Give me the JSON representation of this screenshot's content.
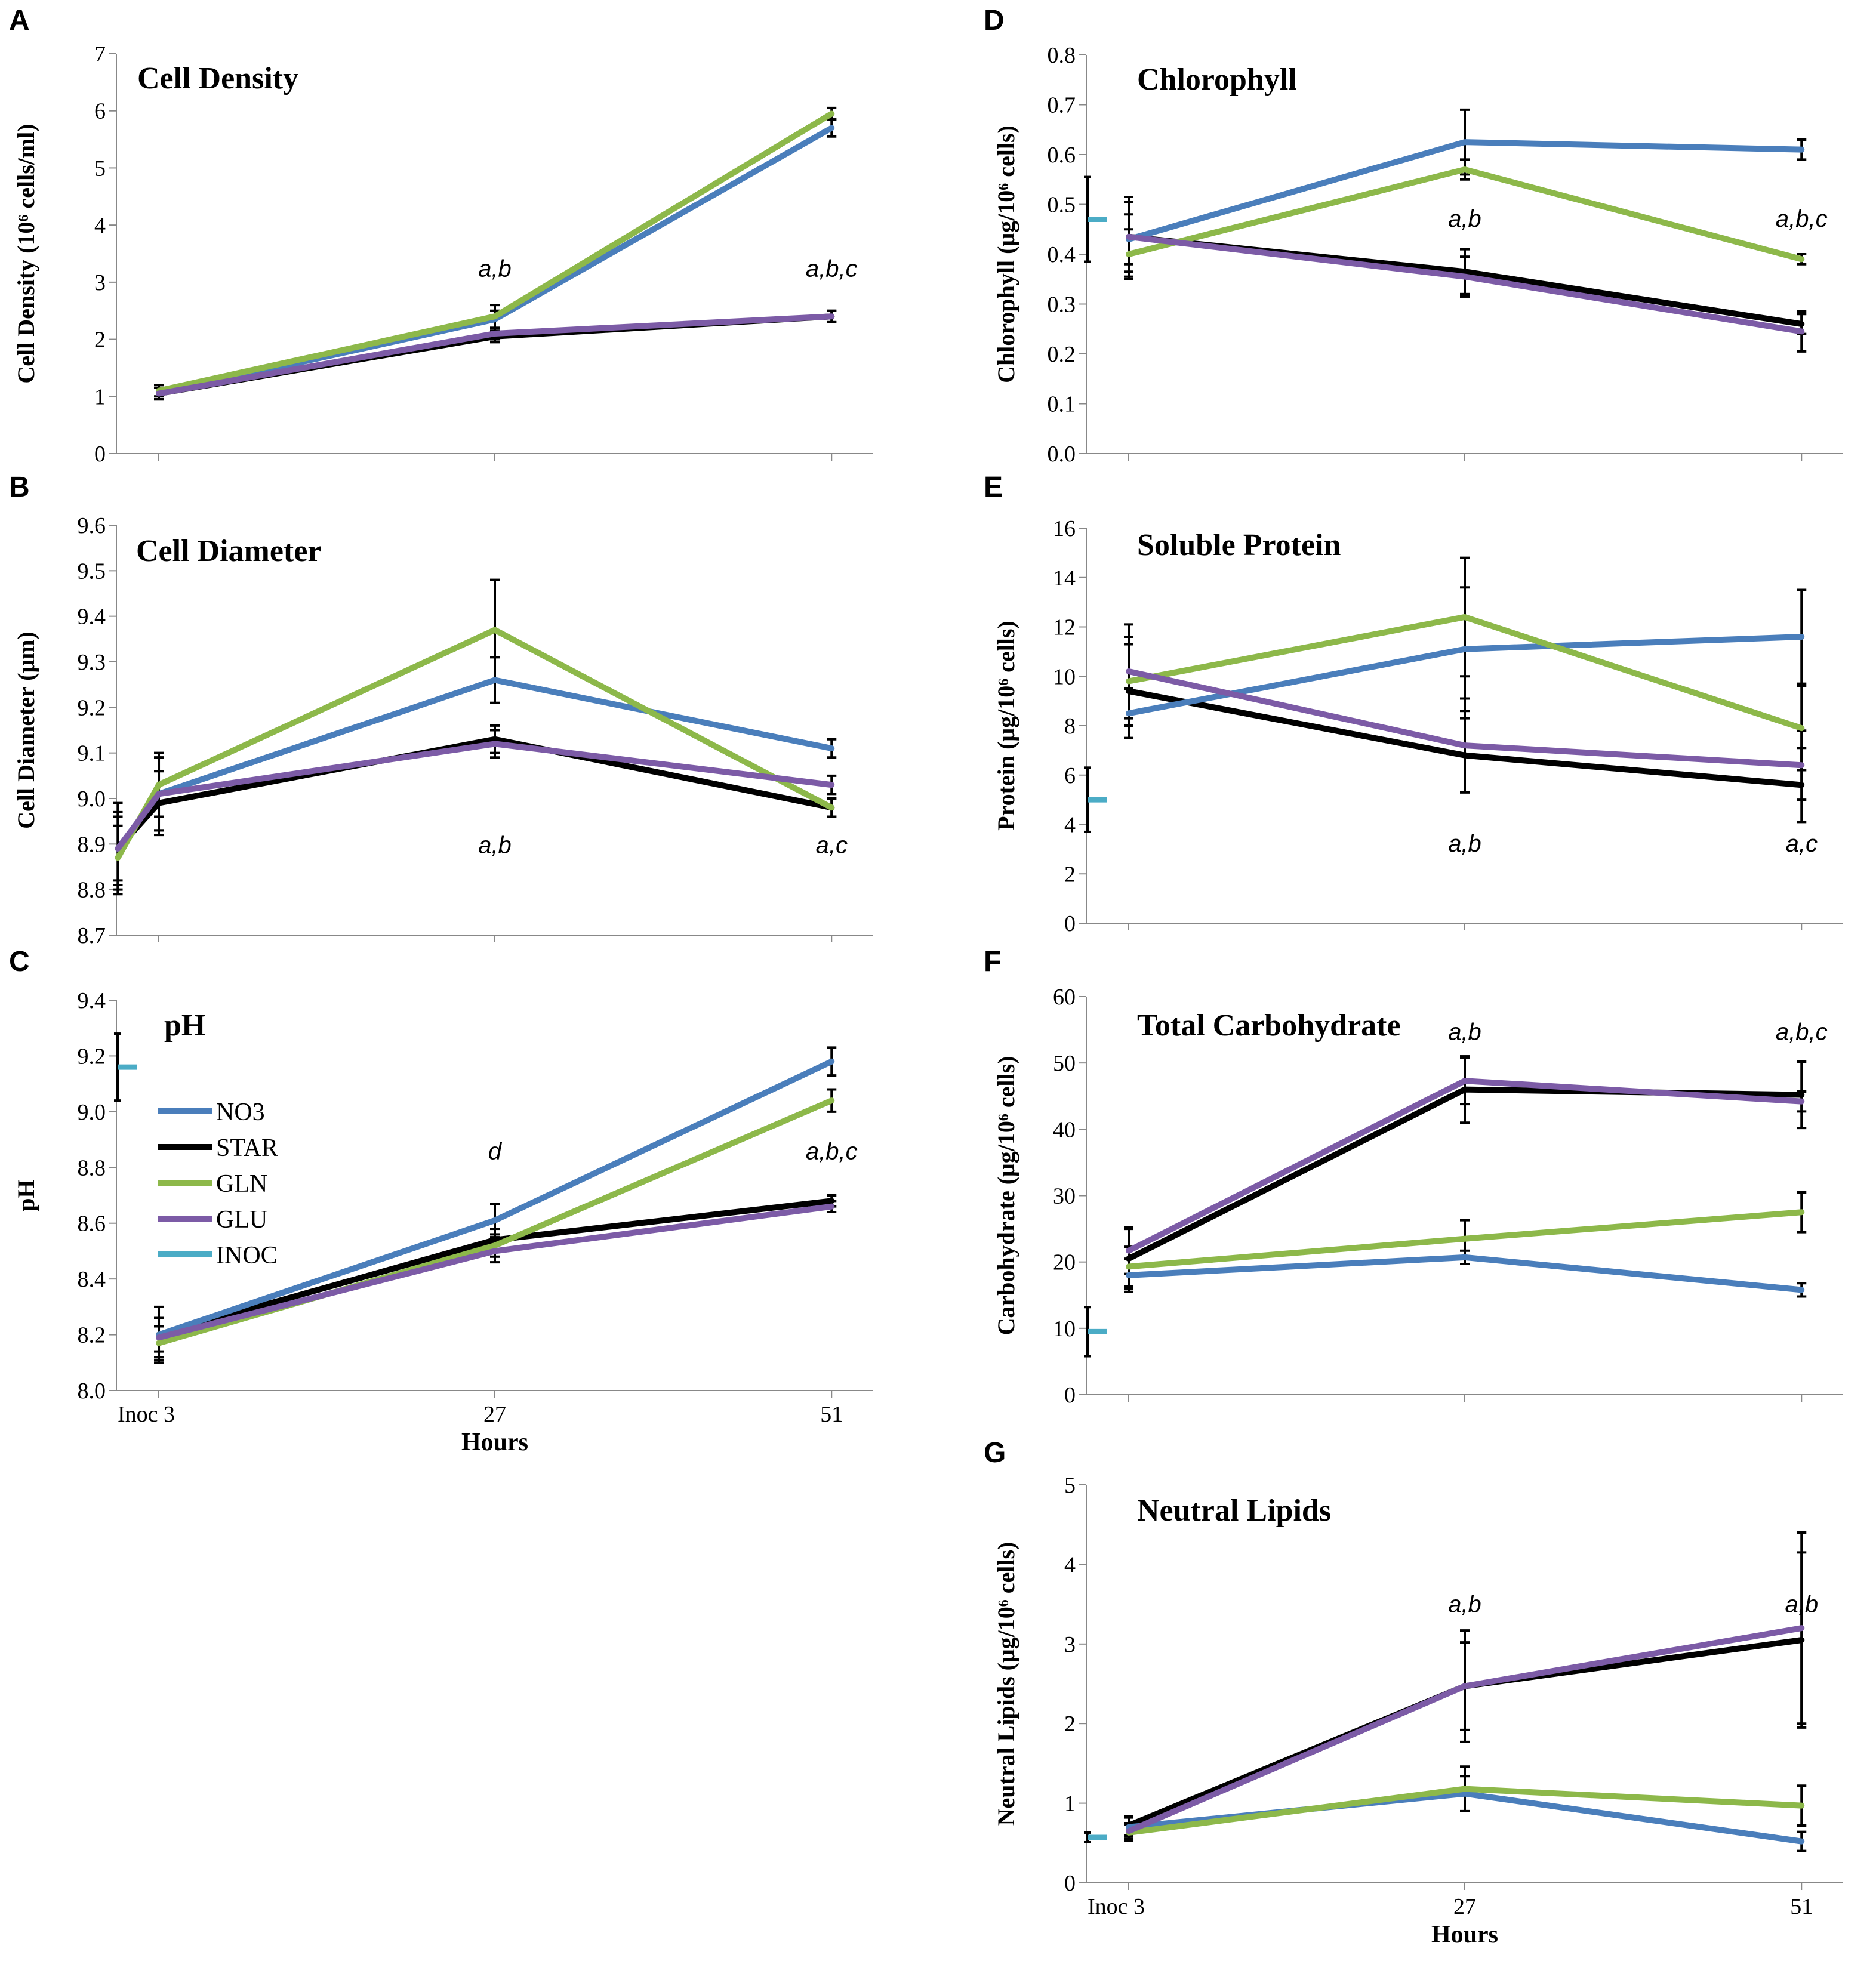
{
  "colors": {
    "NO3": "#4a7ebb",
    "STAR": "#000000",
    "GLN": "#8db84a",
    "GLU": "#7c5ba6",
    "INOC": "#4bacc6"
  },
  "x_axis": {
    "tick_labels": [
      "Inoc 3",
      "27",
      "51"
    ],
    "label": "Hours"
  },
  "legend": [
    "NO3",
    "STAR",
    "GLN",
    "GLU",
    "INOC"
  ],
  "chart_data": [
    {
      "panel": "A",
      "type": "line",
      "title": "Cell Density",
      "ylabel": "Cell Density (10⁶ cells/ml)",
      "ylim": [
        0,
        7
      ],
      "ytick_labels": [
        "0",
        "1",
        "2",
        "3",
        "4",
        "5",
        "6",
        "7"
      ],
      "x": [
        3,
        27,
        51
      ],
      "series": [
        {
          "name": "NO3",
          "values": [
            1.05,
            2.35,
            5.7
          ],
          "err": [
            0.1,
            0.15,
            0.15
          ]
        },
        {
          "name": "STAR",
          "values": [
            1.05,
            2.05,
            2.4
          ],
          "err": [
            0.1,
            0.1,
            0.1
          ]
        },
        {
          "name": "GLN",
          "values": [
            1.1,
            2.4,
            5.95
          ],
          "err": [
            0.1,
            0.2,
            0.1
          ]
        },
        {
          "name": "GLU",
          "values": [
            1.05,
            2.1,
            2.4
          ],
          "err": [
            0.1,
            0.1,
            0.1
          ]
        }
      ],
      "inoc": null,
      "annotations": [
        {
          "x": 27,
          "y": 3.1,
          "text": "a,b"
        },
        {
          "x": 51,
          "y": 3.1,
          "text": "a,b,c"
        }
      ]
    },
    {
      "panel": "B",
      "type": "line",
      "title": "Cell Diameter",
      "ylabel": "Cell Diameter (μm)",
      "ylim": [
        8.7,
        9.6
      ],
      "ytick_labels": [
        "8.7",
        "8.8",
        "8.9",
        "9.0",
        "9.1",
        "9.2",
        "9.3",
        "9.4",
        "9.5",
        "9.6"
      ],
      "x": [
        0,
        3,
        27,
        51
      ],
      "series": [
        {
          "name": "NO3",
          "values": [
            8.89,
            9.01,
            9.26,
            9.11
          ],
          "err": [
            0.08,
            0.08,
            0.05,
            0.02
          ]
        },
        {
          "name": "STAR",
          "values": [
            8.89,
            8.99,
            9.13,
            8.98
          ],
          "err": [
            0.1,
            0.07,
            0.03,
            0.02
          ]
        },
        {
          "name": "GLN",
          "values": [
            8.87,
            9.03,
            9.37,
            8.98
          ],
          "err": [
            0.07,
            0.07,
            0.11,
            0.02
          ]
        },
        {
          "name": "GLU",
          "values": [
            8.89,
            9.01,
            9.12,
            9.03
          ],
          "err": [
            0.07,
            0.08,
            0.03,
            0.02
          ]
        }
      ],
      "inoc": null,
      "annotations": [
        {
          "x": 27,
          "y": 8.88,
          "text": "a,b"
        },
        {
          "x": 51,
          "y": 8.88,
          "text": "a,c"
        }
      ]
    },
    {
      "panel": "C",
      "type": "line",
      "title": "pH",
      "ylabel": "pH",
      "ylim": [
        8.0,
        9.4
      ],
      "ytick_labels": [
        "8.0",
        "8.2",
        "8.4",
        "8.6",
        "8.8",
        "9.0",
        "9.2",
        "9.4"
      ],
      "x": [
        3,
        27,
        51
      ],
      "series": [
        {
          "name": "NO3",
          "values": [
            8.2,
            8.61,
            9.18
          ],
          "err": [
            0.1,
            0.06,
            0.05
          ]
        },
        {
          "name": "STAR",
          "values": [
            8.2,
            8.54,
            8.68
          ],
          "err": [
            0.06,
            0.04,
            0.02
          ]
        },
        {
          "name": "GLN",
          "values": [
            8.17,
            8.52,
            9.04
          ],
          "err": [
            0.06,
            0.04,
            0.04
          ]
        },
        {
          "name": "GLU",
          "values": [
            8.19,
            8.5,
            8.66
          ],
          "err": [
            0.07,
            0.04,
            0.02
          ]
        }
      ],
      "inoc": {
        "value": 9.16,
        "err": 0.12
      },
      "annotations": [
        {
          "x": 27,
          "y": 8.83,
          "text": "d"
        },
        {
          "x": 51,
          "y": 8.83,
          "text": "a,b,c"
        }
      ]
    },
    {
      "panel": "D",
      "type": "line",
      "title": "Chlorophyll",
      "ylabel": "Chlorophyll (μg/10⁶ cells)",
      "ylim": [
        0,
        0.8
      ],
      "ytick_labels": [
        "0.0",
        "0.1",
        "0.2",
        "0.3",
        "0.4",
        "0.5",
        "0.6",
        "0.7",
        "0.8"
      ],
      "x": [
        3,
        27,
        51
      ],
      "series": [
        {
          "name": "NO3",
          "values": [
            0.43,
            0.625,
            0.61
          ],
          "err": [
            0.05,
            0.065,
            0.02
          ]
        },
        {
          "name": "STAR",
          "values": [
            0.435,
            0.365,
            0.26
          ],
          "err": [
            0.08,
            0.045,
            0.02
          ]
        },
        {
          "name": "GLN",
          "values": [
            0.4,
            0.57,
            0.39
          ],
          "err": [
            0.05,
            0.02,
            0.01
          ]
        },
        {
          "name": "GLU",
          "values": [
            0.435,
            0.355,
            0.245
          ],
          "err": [
            0.07,
            0.04,
            0.04
          ]
        }
      ],
      "inoc": {
        "value": 0.47,
        "err": 0.085
      },
      "annotations": [
        {
          "x": 27,
          "y": 0.455,
          "text": "a,b"
        },
        {
          "x": 51,
          "y": 0.455,
          "text": "a,b,c"
        }
      ]
    },
    {
      "panel": "E",
      "type": "line",
      "title": "Soluble Protein",
      "ylabel": "Protein (μg/10⁶ cells)",
      "ylim": [
        0,
        16
      ],
      "ytick_labels": [
        "0",
        "2",
        "4",
        "6",
        "8",
        "10",
        "12",
        "14",
        "16"
      ],
      "x": [
        3,
        27,
        51
      ],
      "series": [
        {
          "name": "NO3",
          "values": [
            8.5,
            11.1,
            11.6
          ],
          "err": [
            1.0,
            2.5,
            1.9
          ]
        },
        {
          "name": "STAR",
          "values": [
            9.4,
            6.8,
            5.6
          ],
          "err": [
            1.9,
            1.5,
            1.5
          ]
        },
        {
          "name": "GLN",
          "values": [
            9.8,
            12.4,
            7.9
          ],
          "err": [
            1.8,
            2.4,
            1.7
          ]
        },
        {
          "name": "GLU",
          "values": [
            10.2,
            7.2,
            6.4
          ],
          "err": [
            1.9,
            1.9,
            1.4
          ]
        }
      ],
      "inoc": {
        "value": 5.0,
        "err": 1.3
      },
      "annotations": [
        {
          "x": 27,
          "y": 2.9,
          "text": "a,b"
        },
        {
          "x": 51,
          "y": 2.9,
          "text": "a,c"
        }
      ]
    },
    {
      "panel": "F",
      "type": "line",
      "title": "Total Carbohydrate",
      "ylabel": "Carbohydrate (μg/10⁶ cells)",
      "ylim": [
        0,
        60
      ],
      "ytick_labels": [
        "0",
        "10",
        "20",
        "30",
        "40",
        "50",
        "60"
      ],
      "x": [
        3,
        27,
        51
      ],
      "series": [
        {
          "name": "NO3",
          "values": [
            18.0,
            20.7,
            15.8
          ],
          "err": [
            2.5,
            1.0,
            1.0
          ]
        },
        {
          "name": "STAR",
          "values": [
            20.5,
            46.0,
            45.2
          ],
          "err": [
            4.5,
            5.0,
            5.0
          ]
        },
        {
          "name": "GLN",
          "values": [
            19.3,
            23.5,
            27.5
          ],
          "err": [
            3.0,
            2.8,
            3.0
          ]
        },
        {
          "name": "GLU",
          "values": [
            21.7,
            47.3,
            44.2
          ],
          "err": [
            3.5,
            3.5,
            1.5
          ]
        }
      ],
      "inoc": {
        "value": 9.5,
        "err": 3.7
      },
      "annotations": [
        {
          "x": 27,
          "y": 53.5,
          "text": "a,b"
        },
        {
          "x": 51,
          "y": 53.5,
          "text": "a,b,c"
        }
      ]
    },
    {
      "panel": "G",
      "type": "line",
      "title": "Neutral Lipids",
      "ylabel": "Neutral Lipids (μg/10⁶ cells)",
      "ylim": [
        0,
        5
      ],
      "ytick_labels": [
        "0",
        "1",
        "2",
        "3",
        "4",
        "5"
      ],
      "x": [
        3,
        27,
        51
      ],
      "series": [
        {
          "name": "NO3",
          "values": [
            0.7,
            1.12,
            0.52
          ],
          "err": [
            0.12,
            0.22,
            0.12
          ]
        },
        {
          "name": "STAR",
          "values": [
            0.72,
            2.47,
            3.05
          ],
          "err": [
            0.12,
            0.7,
            1.1
          ]
        },
        {
          "name": "GLN",
          "values": [
            0.63,
            1.18,
            0.97
          ],
          "err": [
            0.1,
            0.28,
            0.25
          ]
        },
        {
          "name": "GLU",
          "values": [
            0.65,
            2.47,
            3.2
          ],
          "err": [
            0.1,
            0.55,
            1.2
          ]
        }
      ],
      "inoc": {
        "value": 0.57,
        "err": 0.06
      },
      "annotations": [
        {
          "x": 27,
          "y": 3.4,
          "text": "a,b"
        },
        {
          "x": 51,
          "y": 3.4,
          "text": "a,b"
        }
      ]
    }
  ]
}
